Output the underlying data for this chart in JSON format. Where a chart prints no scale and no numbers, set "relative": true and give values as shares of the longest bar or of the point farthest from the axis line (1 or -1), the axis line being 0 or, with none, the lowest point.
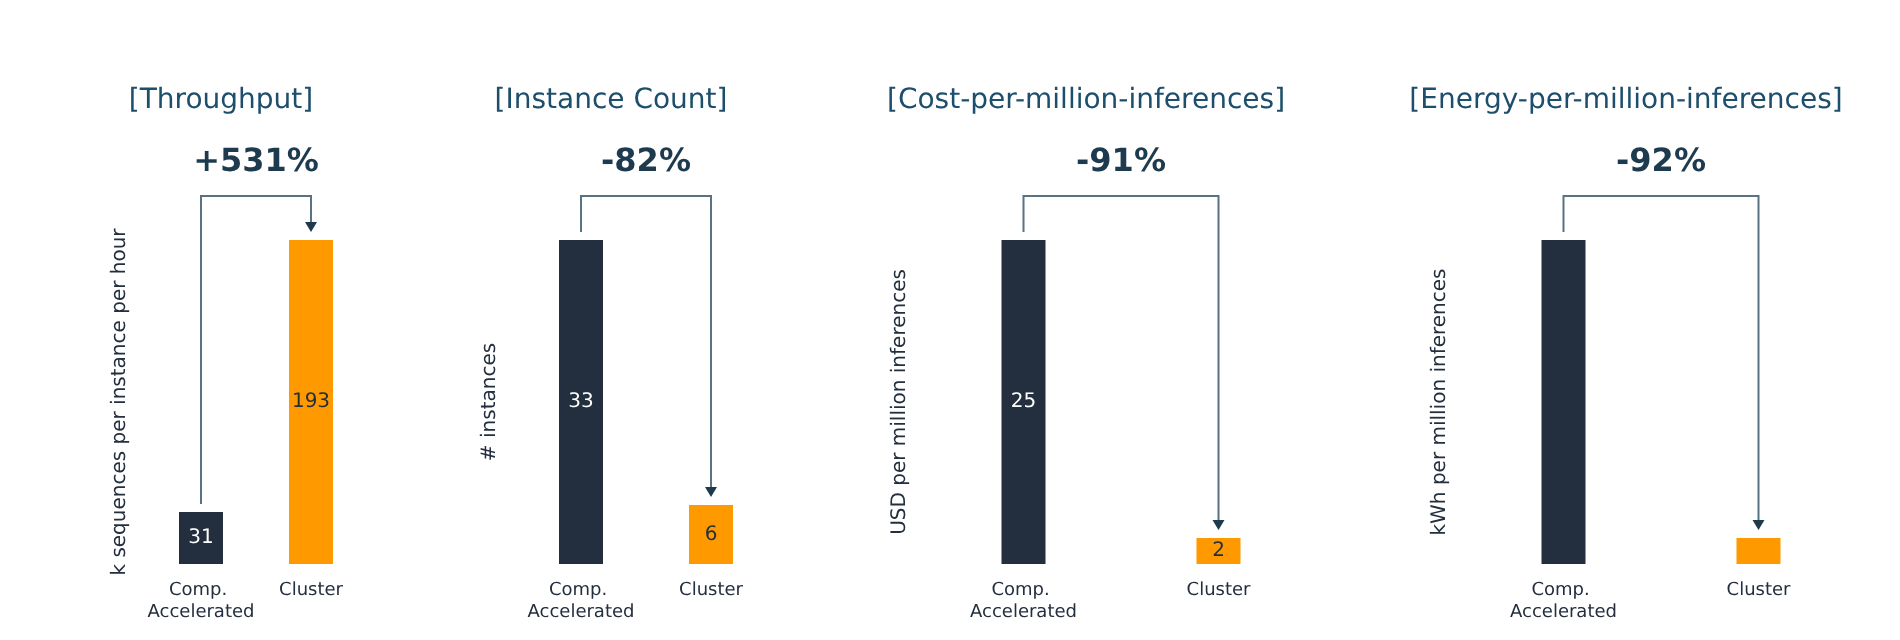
{
  "chart_data": [
    {
      "type": "bar",
      "title": "[Throughput]",
      "annotations": [
        "+531%"
      ],
      "ylabel": "k sequences per instance per hour",
      "categories": [
        "Comp. Accelerated",
        "Cluster"
      ],
      "values": [
        31,
        193
      ],
      "colors": [
        "#232f3e",
        "#ff9900"
      ],
      "data_labels": true
    },
    {
      "type": "bar",
      "title": "[Instance Count]",
      "annotations": [
        "-82%"
      ],
      "ylabel": "# instances",
      "categories": [
        "Comp. Accelerated",
        "Cluster"
      ],
      "values": [
        33,
        6
      ],
      "colors": [
        "#232f3e",
        "#ff9900"
      ],
      "data_labels": true
    },
    {
      "type": "bar",
      "title": "[Cost-per-million-inferences]",
      "annotations": [
        "-91%"
      ],
      "ylabel": "USD per million inferences",
      "categories": [
        "Comp. Accelerated",
        "Cluster"
      ],
      "values": [
        25,
        2
      ],
      "colors": [
        "#232f3e",
        "#ff9900"
      ],
      "data_labels": true
    },
    {
      "type": "bar",
      "title": "[Energy-per-million-inferences]",
      "annotations": [
        "-92%"
      ],
      "ylabel": "kWh per million inferences",
      "categories": [
        "Comp. Accelerated",
        "Cluster"
      ],
      "values": [
        1,
        0.08
      ],
      "colors": [
        "#232f3e",
        "#ff9900"
      ],
      "relative": true
    }
  ]
}
